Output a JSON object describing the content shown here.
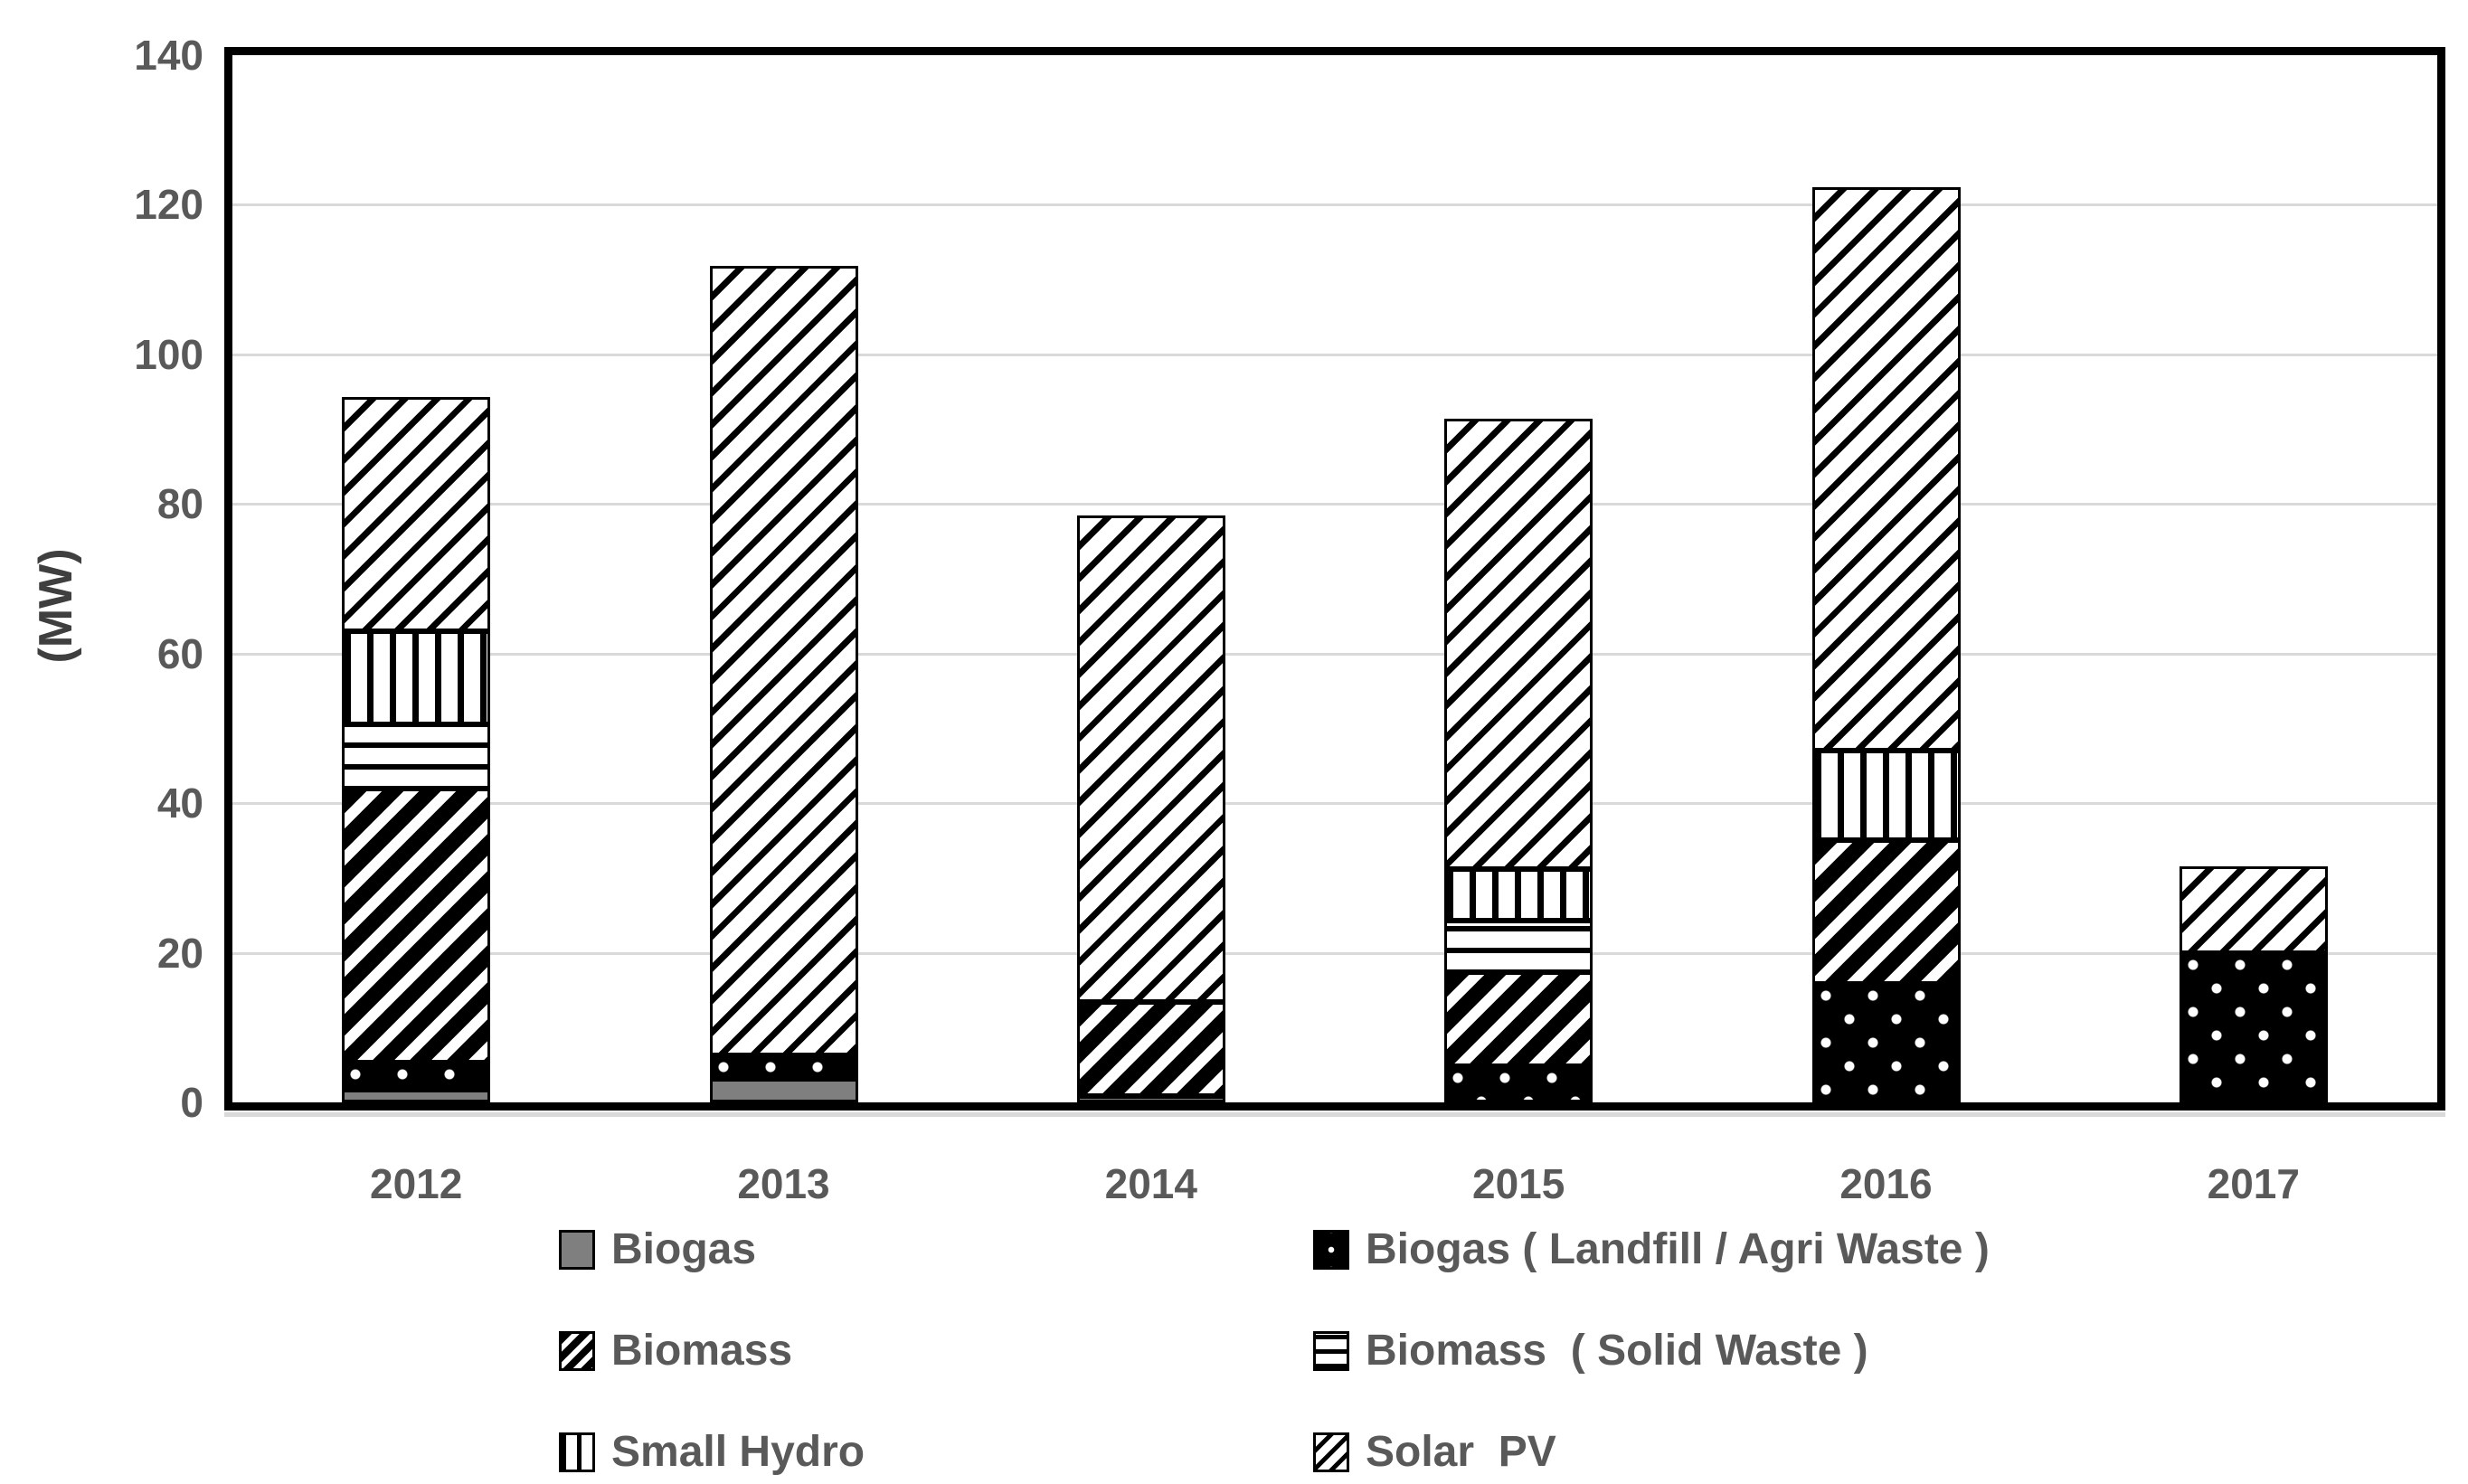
{
  "chart_data": {
    "type": "bar",
    "stacked": true,
    "title": "",
    "xlabel": "",
    "ylabel": "(MW)",
    "ylim": [
      0,
      140
    ],
    "yticks": [
      0,
      20,
      40,
      60,
      80,
      100,
      120,
      140
    ],
    "grid": true,
    "legend_position": "bottom-two-columns",
    "categories": [
      "2012",
      "2013",
      "2014",
      "2015",
      "2016",
      "2017"
    ],
    "series": [
      {
        "name": "Biogas",
        "pattern": "solid-gray",
        "values": [
          1.7,
          3.2,
          0.9,
          0,
          0,
          0
        ]
      },
      {
        "name": "Biogas ( Landfill / Agri Waste )",
        "pattern": "white-dots-on-black",
        "values": [
          3.6,
          3.1,
          0,
          4.8,
          15.8,
          20.0
        ]
      },
      {
        "name": "Biomass",
        "pattern": "dense-diagonal-stripes",
        "values": [
          36.6,
          0,
          12.6,
          12.6,
          19.2,
          0
        ]
      },
      {
        "name": "Biomass  ( Solid Waste )",
        "pattern": "horizontal-stripes",
        "values": [
          8.6,
          0,
          0,
          6.9,
          0,
          0
        ]
      },
      {
        "name": "Small Hydro",
        "pattern": "vertical-stripes",
        "values": [
          12.5,
          0,
          0,
          6.9,
          12.0,
          0
        ]
      },
      {
        "name": "Solar  PV",
        "pattern": "light-diagonal-stripes",
        "values": [
          31.3,
          105.6,
          65.0,
          60.2,
          75.3,
          11.6
        ]
      }
    ],
    "totals": [
      94.3,
      111.9,
      78.5,
      91.4,
      122.3,
      31.6
    ]
  },
  "colors": {
    "axis_text": "#595959",
    "ylabel_text": "#3f3f3f",
    "gridline": "#d9d9d9",
    "bar_outline": "#000000",
    "biogas_gray": "#7f7f7f",
    "background": "#ffffff"
  }
}
